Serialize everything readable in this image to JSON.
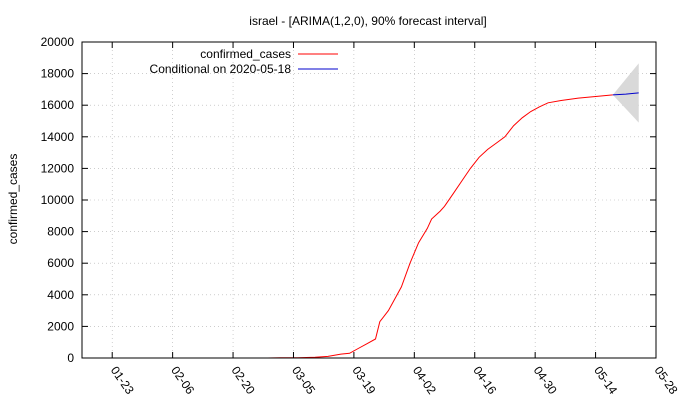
{
  "chart_data": {
    "type": "line",
    "title": "israel -  [ARIMA(1,2,0), 90% forecast interval]",
    "xlabel": "",
    "ylabel": "confirmed_cases",
    "x_is_date": true,
    "xlim": [
      "2020-01-16",
      "2020-05-28"
    ],
    "ylim": [
      0,
      20000
    ],
    "x_ticks": [
      "01-23",
      "02-06",
      "02-20",
      "03-05",
      "03-19",
      "04-02",
      "04-16",
      "04-30",
      "05-14",
      "05-28"
    ],
    "x_tick_dates": [
      "2020-01-23",
      "2020-02-06",
      "2020-02-20",
      "2020-03-05",
      "2020-03-19",
      "2020-04-02",
      "2020-04-16",
      "2020-04-30",
      "2020-05-14",
      "2020-05-28"
    ],
    "y_ticks": [
      0,
      2000,
      4000,
      6000,
      8000,
      10000,
      12000,
      14000,
      16000,
      18000,
      20000
    ],
    "y_tick_labels": [
      "0",
      "2000",
      "4000",
      "6000",
      "8000",
      "10000",
      "12000",
      "14000",
      "16000",
      "18000",
      "20000"
    ],
    "grid": true,
    "legend_position": "top-left",
    "series": [
      {
        "name": "confirmed_cases",
        "color": "#ff0000",
        "points": [
          [
            "2020-02-28",
            0
          ],
          [
            "2020-03-02",
            10
          ],
          [
            "2020-03-06",
            20
          ],
          [
            "2020-03-10",
            50
          ],
          [
            "2020-03-13",
            100
          ],
          [
            "2020-03-16",
            250
          ],
          [
            "2020-03-18",
            300
          ],
          [
            "2020-03-20",
            600
          ],
          [
            "2020-03-22",
            900
          ],
          [
            "2020-03-24",
            1200
          ],
          [
            "2020-03-25",
            2300
          ],
          [
            "2020-03-27",
            3000
          ],
          [
            "2020-03-29",
            4000
          ],
          [
            "2020-03-30",
            4500
          ],
          [
            "2020-04-01",
            6000
          ],
          [
            "2020-04-03",
            7300
          ],
          [
            "2020-04-05",
            8200
          ],
          [
            "2020-04-06",
            8800
          ],
          [
            "2020-04-08",
            9300
          ],
          [
            "2020-04-09",
            9600
          ],
          [
            "2020-04-11",
            10400
          ],
          [
            "2020-04-13",
            11200
          ],
          [
            "2020-04-15",
            12000
          ],
          [
            "2020-04-17",
            12700
          ],
          [
            "2020-04-19",
            13200
          ],
          [
            "2020-04-21",
            13600
          ],
          [
            "2020-04-23",
            14000
          ],
          [
            "2020-04-25",
            14700
          ],
          [
            "2020-04-27",
            15200
          ],
          [
            "2020-04-29",
            15600
          ],
          [
            "2020-05-01",
            15900
          ],
          [
            "2020-05-03",
            16150
          ],
          [
            "2020-05-06",
            16300
          ],
          [
            "2020-05-10",
            16450
          ],
          [
            "2020-05-14",
            16550
          ],
          [
            "2020-05-18",
            16650
          ]
        ]
      },
      {
        "name": "Conditional on 2020-05-18",
        "color": "#0000cc",
        "points": [
          [
            "2020-05-18",
            16650
          ],
          [
            "2020-05-21",
            16700
          ],
          [
            "2020-05-24",
            16780
          ]
        ]
      }
    ],
    "forecast_interval": {
      "color": "#d9d9d9",
      "points": [
        [
          "2020-05-18",
          16650,
          16650
        ],
        [
          "2020-05-24",
          14900,
          18650
        ]
      ]
    }
  }
}
